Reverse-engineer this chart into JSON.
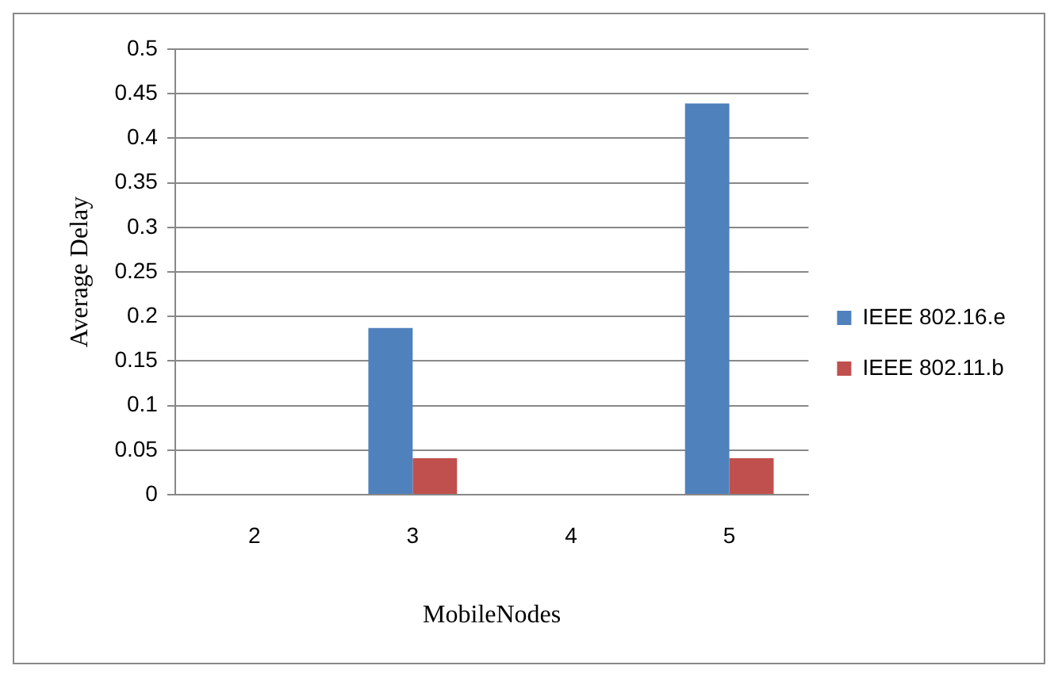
{
  "chart_data": {
    "type": "bar",
    "xlabel": "MobileNodes",
    "ylabel": "Average Delay",
    "categories": [
      "2",
      "3",
      "4",
      "5"
    ],
    "series": [
      {
        "name": "IEEE 802.16.e",
        "color": "#4f81bd",
        "values": [
          0,
          0.187,
          0,
          0.439
        ]
      },
      {
        "name": "IEEE 802.11.b",
        "color": "#c0504d",
        "values": [
          0,
          0.041,
          0,
          0.041
        ]
      }
    ],
    "ylim": [
      0,
      0.5
    ],
    "yticks": [
      0,
      0.05,
      0.1,
      0.15,
      0.2,
      0.25,
      0.3,
      0.35,
      0.4,
      0.45,
      0.5
    ],
    "grid": "y",
    "legend": "right"
  }
}
